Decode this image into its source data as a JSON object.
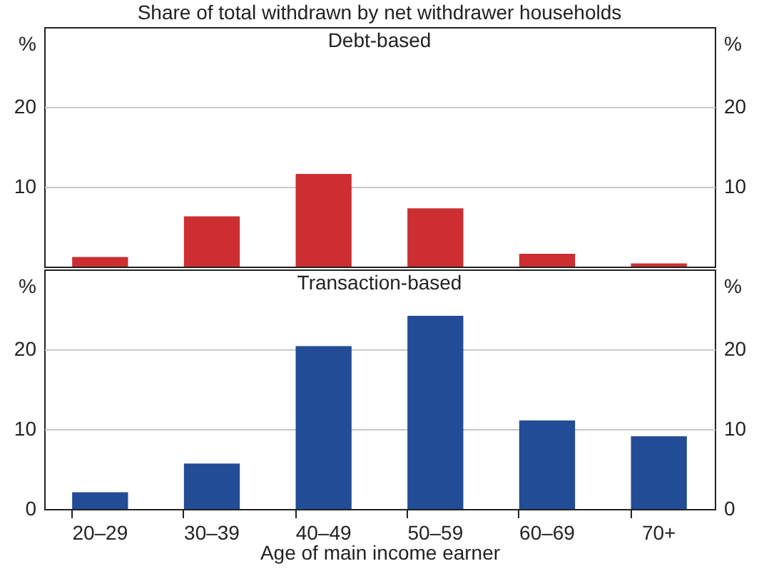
{
  "chart_data": [
    {
      "type": "bar",
      "title": "Share of total withdrawn by net withdrawer households",
      "subtitle": "Debt-based",
      "categories": [
        null,
        null,
        null,
        null,
        null,
        null
      ],
      "values": [
        1.2,
        6.3,
        11.6,
        7.3,
        1.6,
        0.4
      ],
      "color": "#cc2e31",
      "ylabel": "%",
      "y2label": "%",
      "ylim": [
        0,
        30
      ],
      "yticks": [
        10,
        20
      ],
      "y2lim": [
        0,
        30
      ],
      "y2ticks": [
        10,
        20
      ],
      "grid": "y",
      "tick_labels": "y"
    },
    {
      "type": "bar",
      "subtitle": "Transaction-based",
      "xlabel": "Age of main income earner",
      "categories": [
        "20–29",
        "30–39",
        "40–49",
        "50–59",
        "60–69",
        "70+"
      ],
      "values": [
        2.1,
        5.7,
        20.4,
        24.2,
        11.1,
        9.1
      ],
      "color": "#234c96",
      "ylabel": "%",
      "y2label": "%",
      "ylim": [
        0,
        30
      ],
      "yticks": [
        0,
        10,
        20
      ],
      "y2ticks": [
        0,
        10,
        20
      ],
      "y2lim": [
        0,
        30
      ],
      "grid": "y"
    }
  ]
}
